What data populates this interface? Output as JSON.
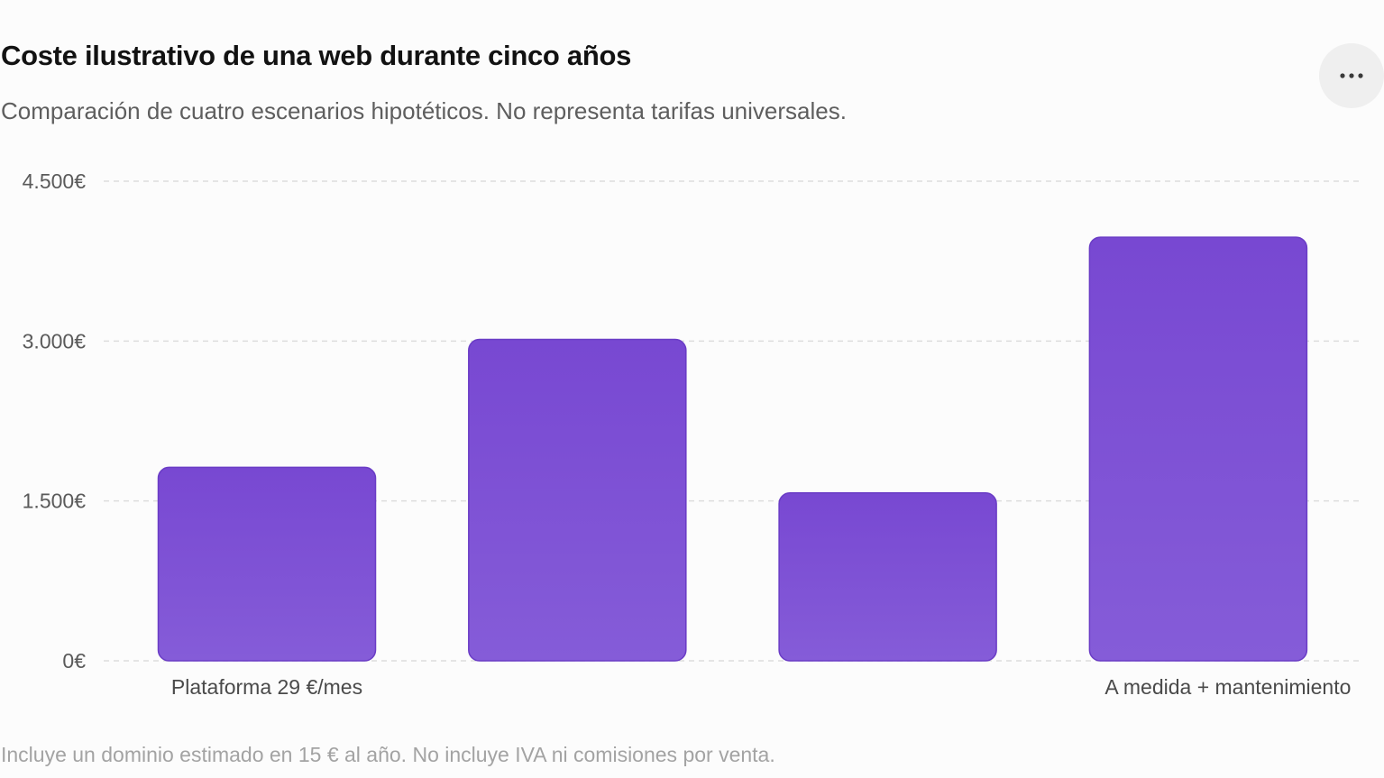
{
  "header": {
    "title": "Coste ilustrativo de una web durante cinco años",
    "subtitle": "Comparación de cuatro escenarios hipotéticos. No representa tarifas universales."
  },
  "menu": {
    "icon": "more-horizontal-icon"
  },
  "chart_data": {
    "type": "bar",
    "categories": [
      "Plataforma 29 €/mes",
      "",
      "",
      "A medida + mantenimiento"
    ],
    "values": [
      1815,
      3015,
      1575,
      3975
    ],
    "ylim": [
      0,
      4500
    ],
    "yticks": [
      0,
      1500,
      3000,
      4500
    ],
    "ytick_labels": [
      "0€",
      "1.500€",
      "3.000€",
      "4.500€"
    ],
    "xlabel": "",
    "ylabel": "",
    "grid": true,
    "bar_color_top": "#7848d2",
    "bar_color_bottom": "#855cd8",
    "bar_border": "#6a3cc6"
  },
  "footer": {
    "note": "Incluye un dominio estimado en 15 € al año. No incluye IVA ni comisiones por venta."
  }
}
